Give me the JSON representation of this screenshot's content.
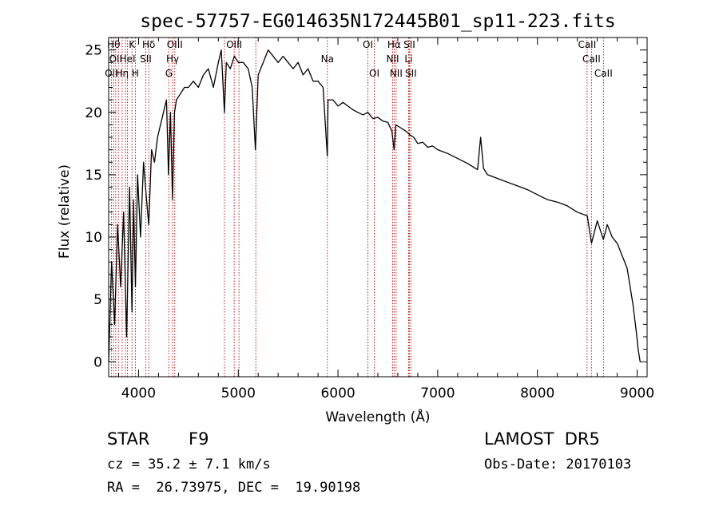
{
  "title": "spec-57757-EG014635N172445B01_sp11-223.fits",
  "info": {
    "object_class": "STAR",
    "subclass": "F9",
    "survey": "LAMOST  DR5",
    "redshift": "cz = 35.2 ± 7.1 km/s",
    "obs_date": "Obs-Date: 20170103",
    "coords": "RA =  26.73975, DEC =  19.90198"
  },
  "chart_data": {
    "type": "line",
    "xlabel": "Wavelength (Å)",
    "ylabel": "Flux (relative)",
    "xlim": [
      3700,
      9100
    ],
    "ylim": [
      -1.2,
      26
    ],
    "grid": false,
    "x_ticks": [
      4000,
      5000,
      6000,
      7000,
      8000,
      9000
    ],
    "y_ticks": [
      0,
      5,
      10,
      15,
      20,
      25
    ],
    "line_color": "#000000",
    "marker_color": "#c00000",
    "series": [
      {
        "x": [
          3700,
          3730,
          3760,
          3790,
          3820,
          3850,
          3880,
          3910,
          3934,
          3950,
          3968,
          3990,
          4020,
          4050,
          4080,
          4102,
          4130,
          4160,
          4190,
          4220,
          4250,
          4280,
          4300,
          4320,
          4340,
          4360,
          4380,
          4420,
          4460,
          4500,
          4550,
          4600,
          4650,
          4700,
          4750,
          4800,
          4830,
          4861,
          4880,
          4920,
          4960,
          5000,
          5050,
          5100,
          5140,
          5172,
          5200,
          5250,
          5300,
          5350,
          5400,
          5450,
          5500,
          5550,
          5600,
          5650,
          5700,
          5750,
          5800,
          5850,
          5893,
          5900,
          5950,
          6000,
          6050,
          6100,
          6150,
          6200,
          6250,
          6300,
          6350,
          6400,
          6450,
          6500,
          6540,
          6563,
          6580,
          6620,
          6680,
          6720,
          6760,
          6800,
          6850,
          6900,
          6950,
          7000,
          7100,
          7200,
          7300,
          7400,
          7430,
          7460,
          7500,
          7600,
          7700,
          7800,
          7900,
          8000,
          8100,
          8200,
          8300,
          8400,
          8500,
          8542,
          8600,
          8662,
          8700,
          8750,
          8800,
          8850,
          8900,
          8930,
          8960,
          8990,
          9010,
          9030
        ],
        "y": [
          0,
          8,
          3,
          11,
          6,
          12,
          2,
          14,
          4,
          13,
          6,
          15,
          10,
          16,
          13,
          11,
          17,
          16,
          18,
          19,
          20,
          21,
          15,
          20,
          13,
          20,
          21,
          21.5,
          22,
          22,
          22.5,
          22,
          23,
          23.5,
          22,
          24,
          25,
          20,
          24,
          23.5,
          24.5,
          24,
          24,
          23.5,
          22,
          17,
          23,
          24,
          25,
          24.5,
          24,
          24.5,
          24,
          23.5,
          24,
          23,
          23.5,
          22.5,
          22.5,
          22,
          16.5,
          21,
          21,
          20.5,
          20.8,
          20.5,
          20.2,
          20,
          19.8,
          20,
          19.5,
          19.6,
          19.3,
          19.2,
          18.5,
          17,
          19,
          18.8,
          18.5,
          18.2,
          18,
          17.5,
          17.6,
          17.2,
          17.3,
          17,
          16.7,
          16.3,
          15.9,
          15.4,
          18,
          15.5,
          15,
          14.7,
          14.4,
          14.1,
          13.8,
          13.4,
          13,
          12.8,
          12.5,
          12,
          11.7,
          9.5,
          11.3,
          9.8,
          11,
          10,
          9.5,
          8.5,
          7.5,
          6,
          4.5,
          2.5,
          1,
          0
        ]
      }
    ],
    "line_markers": [
      {
        "wl": 3727,
        "label": "OII",
        "row": 2
      },
      {
        "wl": 3750,
        "label": "Hθ",
        "row": 0
      },
      {
        "wl": 3771,
        "label": "OII",
        "row": 1
      },
      {
        "wl": 3798,
        "label": "",
        "row": 0
      },
      {
        "wl": 3835,
        "label": "Hη",
        "row": 2
      },
      {
        "wl": 3869,
        "label": "",
        "row": 0
      },
      {
        "wl": 3889,
        "label": "HeI",
        "row": 1
      },
      {
        "wl": 3934,
        "label": "K",
        "row": 0
      },
      {
        "wl": 3968,
        "label": "H",
        "row": 2
      },
      {
        "wl": 4072,
        "label": "SII",
        "row": 1
      },
      {
        "wl": 4102,
        "label": "Hδ",
        "row": 0
      },
      {
        "wl": 4304,
        "label": "G",
        "row": 2
      },
      {
        "wl": 4341,
        "label": "Hγ",
        "row": 1
      },
      {
        "wl": 4363,
        "label": "OIII",
        "row": 0
      },
      {
        "wl": 4861,
        "label": "",
        "row": 0
      },
      {
        "wl": 4959,
        "label": "OIII",
        "row": 0
      },
      {
        "wl": 5007,
        "label": "",
        "row": 1
      },
      {
        "wl": 5176,
        "label": "",
        "row": 0
      },
      {
        "wl": 5894,
        "label": "Na",
        "row": 1
      },
      {
        "wl": 6300,
        "label": "OI",
        "row": 0
      },
      {
        "wl": 6364,
        "label": "OI",
        "row": 2
      },
      {
        "wl": 6548,
        "label": "NII",
        "row": 1
      },
      {
        "wl": 6563,
        "label": "Hα",
        "row": 0
      },
      {
        "wl": 6583,
        "label": "NII",
        "row": 2
      },
      {
        "wl": 6708,
        "label": "Li",
        "row": 1
      },
      {
        "wl": 6716,
        "label": "SII",
        "row": 0
      },
      {
        "wl": 6731,
        "label": "SII",
        "row": 2
      },
      {
        "wl": 8498,
        "label": "CaII",
        "row": 0
      },
      {
        "wl": 8542,
        "label": "CaII",
        "row": 1
      },
      {
        "wl": 8662,
        "label": "CaII",
        "row": 2
      }
    ]
  }
}
